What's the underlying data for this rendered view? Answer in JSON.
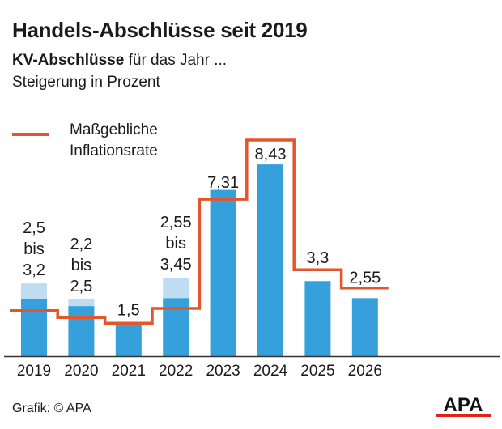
{
  "title": "Handels-Abschlüsse seit 2019",
  "subtitle_bold": "KV-Abschlüsse",
  "subtitle_rest": " für das Jahr ...",
  "subtitle2": "Steigerung in Prozent",
  "legend": {
    "line_label_1": "Maßgebliche",
    "line_label_2": "Inflationsrate"
  },
  "source": "Grafik: © APA",
  "logo_text": "APA",
  "colors": {
    "bar": "#35a0dc",
    "bar_range": "#bfdcf3",
    "line": "#e3562b",
    "axis": "#333333"
  },
  "chart_data": {
    "type": "bar",
    "title": "Handels-Abschlüsse seit 2019",
    "xlabel": "",
    "ylabel": "Steigerung in Prozent",
    "ylim": [
      0,
      9.5
    ],
    "grid": false,
    "legend_placement": "top-left",
    "categories": [
      "2019",
      "2020",
      "2021",
      "2022",
      "2023",
      "2024",
      "2025",
      "2026"
    ],
    "series": [
      {
        "name": "KV-Abschluss (min)",
        "values": [
          2.5,
          2.2,
          1.5,
          2.55,
          7.31,
          8.43,
          3.3,
          2.55
        ]
      },
      {
        "name": "KV-Abschluss (max)",
        "values": [
          3.2,
          2.5,
          1.5,
          3.45,
          7.31,
          8.43,
          3.3,
          2.55
        ]
      },
      {
        "name": "Maßgebliche Inflationsrate",
        "type": "step-line",
        "values": [
          2.0,
          1.7,
          1.45,
          2.1,
          6.9,
          9.5,
          3.8,
          3.0
        ]
      }
    ],
    "data_labels": [
      [
        "2,5",
        "bis",
        "3,2"
      ],
      [
        "2,2",
        "bis",
        "2,5"
      ],
      [
        "1,5"
      ],
      [
        "2,55",
        "bis",
        "3,45"
      ],
      [
        "7,31"
      ],
      [
        "8,43"
      ],
      [
        "3,3"
      ],
      [
        "2,55"
      ]
    ]
  }
}
